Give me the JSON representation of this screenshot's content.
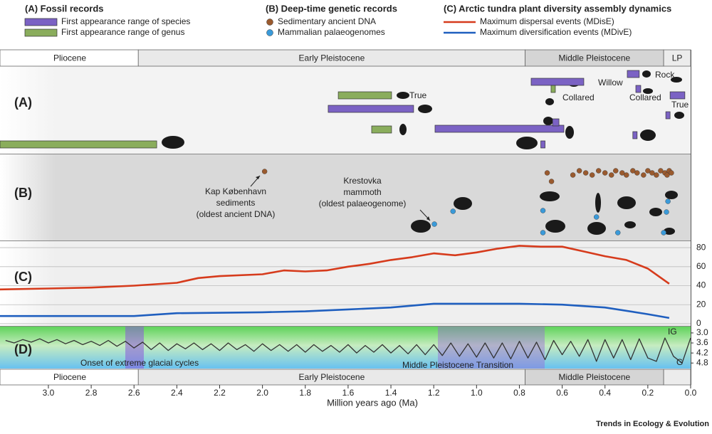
{
  "legend": {
    "groups": [
      {
        "title": "(A) Fossil records",
        "items": [
          "First appearance range of species",
          "First appearance range of genus"
        ]
      },
      {
        "title": "(B) Deep-time genetic records",
        "items": [
          "Sedimentary ancient DNA",
          "Mammalian palaeogenomes"
        ]
      },
      {
        "title": "(C) Arctic tundra plant diversity assembly dynamics",
        "items": [
          "Maximum dispersal events (MDisE)",
          "Maximum diversification events (MDivE)"
        ]
      }
    ]
  },
  "panel_labels": [
    "(A)",
    "(B)",
    "(C)",
    "(D)"
  ],
  "epochs": [
    {
      "name": "Pliocene",
      "start": 3.226,
      "end": 2.58,
      "color": "#ffffff"
    },
    {
      "name": "Early Pleistocene",
      "start": 2.58,
      "end": 0.773,
      "color": "#e9e9e9"
    },
    {
      "name": "Middle Pleistocene",
      "start": 0.773,
      "end": 0.126,
      "color": "#d5d5d5"
    },
    {
      "name": "LP",
      "start": 0.126,
      "end": 0,
      "color": "#ececec"
    }
  ],
  "x_axis": {
    "label": "Million years ago (Ma)",
    "xlim": [
      3.226,
      0
    ],
    "xticks": [
      {
        "value": 3,
        "label": "3.0"
      },
      2.8,
      2.6,
      2.4,
      2.2,
      {
        "value": 2,
        "label": "2.0"
      },
      1.8,
      1.6,
      1.4,
      1.2,
      {
        "value": 1,
        "label": "1.0"
      },
      0.8,
      0.6,
      0.4,
      0.2,
      {
        "value": 0,
        "label": "0.0"
      }
    ]
  },
  "chart_data": [
    {
      "type": "range",
      "series": [
        {
          "name": "First appearance range of species",
          "color": "#7b62c4",
          "ranges": [
            [
              1.693,
              1.294
            ],
            [
              1.194,
              0.592
            ],
            [
              0.645,
              0.615
            ],
            [
              0.745,
              0.499
            ],
            [
              0.7,
              0.68
            ],
            [
              0.296,
              0.24
            ],
            [
              0.256,
              0.233
            ],
            [
              0.096,
              0.027
            ],
            [
              0.116,
              0.096
            ],
            [
              0.27,
              0.25
            ]
          ]
        },
        {
          "name": "First appearance range of genus",
          "color": "#8aad5c",
          "ranges": [
            [
              3.226,
              2.494
            ],
            [
              1.646,
              1.397
            ],
            [
              1.49,
              1.397
            ],
            [
              0.652,
              0.632
            ]
          ]
        }
      ],
      "annotations": [
        "True",
        "Willow",
        "Collared",
        "Rock",
        "Collared",
        "True"
      ]
    },
    {
      "type": "strip",
      "series": [
        {
          "name": "Sedimentary ancient DNA",
          "color": "#9a5a2e",
          "values": [
            1.99,
            0.67,
            0.55,
            0.52,
            0.49,
            0.46,
            0.43,
            0.4,
            0.37,
            0.35,
            0.32,
            0.3,
            0.27,
            0.25,
            0.22,
            0.2,
            0.18,
            0.16,
            0.14,
            0.12,
            0.11,
            0.1,
            0.09,
            0.65
          ]
        },
        {
          "name": "Mammalian palaeogenomes",
          "color": "#3a9ad9",
          "values": [
            1.197,
            1.11,
            0.69,
            0.69,
            0.44,
            0.34,
            0.106,
            0.113,
            0.126
          ]
        }
      ],
      "annotations": [
        [
          "Kap København",
          "sediments",
          "(oldest ancient DNA)"
        ],
        [
          "Krestovka",
          "mammoth",
          "(oldest palaeogenome)"
        ]
      ]
    },
    {
      "type": "line",
      "ylim": [
        -2.3,
        86.8
      ],
      "yticks": [
        0,
        20,
        40,
        60,
        80
      ],
      "grid": true,
      "series": [
        {
          "name": "Maximum dispersal events (MDisE)",
          "color": "#d63b1c",
          "x": [
            3.226,
            3,
            2.8,
            2.6,
            2.4,
            2.3,
            2.2,
            2,
            1.9,
            1.8,
            1.7,
            1.6,
            1.5,
            1.4,
            1.3,
            1.2,
            1.1,
            1,
            0.9,
            0.8,
            0.7,
            0.6,
            0.5,
            0.4,
            0.3,
            0.2,
            0.1
          ],
          "values": [
            36,
            37,
            38,
            40,
            43,
            48,
            50,
            52,
            56,
            55,
            56,
            60,
            63,
            67,
            70,
            74,
            72,
            75,
            79,
            82,
            81,
            81,
            76,
            71,
            67,
            58,
            42
          ]
        },
        {
          "name": "Maximum diversification events (MDivE)",
          "color": "#1f5fbf",
          "x": [
            3.226,
            2.6,
            2.4,
            2,
            1.8,
            1.6,
            1.4,
            1.2,
            1,
            0.8,
            0.6,
            0.4,
            0.2,
            0.1
          ],
          "values": [
            8,
            8,
            11,
            12,
            13,
            15,
            17,
            21,
            21,
            21,
            20,
            17,
            10,
            6
          ]
        }
      ]
    },
    {
      "type": "line",
      "ylim": [
        5.13,
        2.62
      ],
      "yticks": [
        {
          "value": 3,
          "label": "3.0"
        },
        3.6,
        4.2,
        4.8
      ],
      "annotations": [
        "Onset of extreme glacial cycles",
        "Middle Pleistocene Transition",
        "IG",
        "G"
      ],
      "series": [
        {
          "color": "#333333",
          "x": [
            3.2,
            3.16,
            3.12,
            3.08,
            3.04,
            3,
            2.96,
            2.92,
            2.88,
            2.84,
            2.8,
            2.76,
            2.72,
            2.68,
            2.64,
            2.6,
            2.56,
            2.52,
            2.48,
            2.44,
            2.4,
            2.36,
            2.32,
            2.28,
            2.24,
            2.2,
            2.16,
            2.12,
            2.08,
            2.04,
            2,
            1.96,
            1.92,
            1.88,
            1.84,
            1.8,
            1.76,
            1.72,
            1.68,
            1.64,
            1.6,
            1.56,
            1.52,
            1.48,
            1.44,
            1.4,
            1.36,
            1.32,
            1.28,
            1.24,
            1.2,
            1.16,
            1.12,
            1.08,
            1.04,
            1,
            0.96,
            0.92,
            0.88,
            0.84,
            0.8,
            0.76,
            0.72,
            0.68,
            0.64,
            0.6,
            0.56,
            0.52,
            0.48,
            0.44,
            0.4,
            0.36,
            0.32,
            0.28,
            0.24,
            0.2,
            0.16,
            0.12,
            0.08,
            0.04,
            0
          ],
          "values": [
            3.45,
            3.6,
            3.4,
            3.55,
            3.35,
            3.6,
            3.4,
            3.65,
            3.45,
            3.7,
            3.5,
            3.75,
            3.45,
            3.8,
            3.5,
            3.9,
            3.55,
            4.0,
            3.6,
            4.05,
            3.65,
            3.95,
            3.6,
            4.0,
            3.65,
            4.05,
            3.6,
            4.0,
            3.7,
            4.1,
            3.65,
            4.05,
            3.7,
            4.1,
            3.7,
            4.15,
            3.7,
            4.1,
            3.75,
            4.15,
            3.7,
            4.2,
            3.75,
            4.15,
            3.7,
            4.2,
            3.75,
            4.25,
            3.7,
            4.3,
            3.7,
            4.35,
            3.6,
            4.4,
            3.65,
            4.45,
            3.6,
            4.5,
            3.6,
            4.55,
            3.5,
            4.5,
            3.55,
            4.6,
            3.45,
            4.3,
            3.5,
            4.4,
            3.4,
            4.7,
            3.4,
            4.5,
            3.4,
            4.6,
            3.35,
            4.5,
            4.7,
            3.3,
            4.4,
            4.8,
            3.3
          ]
        }
      ]
    }
  ],
  "footer": "Trends in Ecology & Evolution"
}
